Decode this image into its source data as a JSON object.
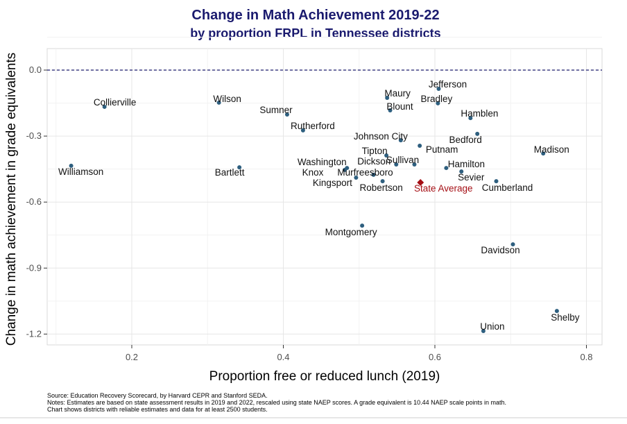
{
  "chart_data": {
    "type": "scatter",
    "title": "Change in Math Achievement 2019-22",
    "subtitle": "by proportion FRPL in Tennessee districts",
    "xlabel": "Proportion free or reduced lunch (2019)",
    "ylabel": "Change in math achievement in grade equivalents",
    "xlim": [
      0.09,
      0.81
    ],
    "ylim": [
      -1.25,
      0.1
    ],
    "x_ticks": [
      0.2,
      0.4,
      0.6,
      0.8
    ],
    "x_tick_labels": [
      "0.2",
      "0.4",
      "0.6",
      "0.8"
    ],
    "y_ticks": [
      0.0,
      -0.3,
      -0.6,
      -0.9,
      -1.2
    ],
    "y_tick_labels": [
      "0.0",
      "-0.3",
      "-0.6",
      "-0.9",
      "-1.2"
    ],
    "grid": true,
    "reference_line": {
      "y": 0.0,
      "style": "dashed",
      "color": "#1a1a6e"
    },
    "point_color": "#2e5f7f",
    "highlight_color": "#a50f15",
    "points": [
      {
        "label": "Collierville",
        "x": 0.164,
        "y": -0.167
      },
      {
        "label": "Williamson",
        "x": 0.12,
        "y": -0.435
      },
      {
        "label": "Wilson",
        "x": 0.315,
        "y": -0.148
      },
      {
        "label": "Bartlett",
        "x": 0.342,
        "y": -0.442
      },
      {
        "label": "Sumner",
        "x": 0.405,
        "y": -0.202
      },
      {
        "label": "Rutherford",
        "x": 0.426,
        "y": -0.274
      },
      {
        "label": "Maury",
        "x": 0.537,
        "y": -0.126
      },
      {
        "label": "Blount",
        "x": 0.541,
        "y": -0.183
      },
      {
        "label": "Jefferson",
        "x": 0.605,
        "y": -0.085
      },
      {
        "label": "Bradley",
        "x": 0.604,
        "y": -0.151
      },
      {
        "label": "Hamblen",
        "x": 0.647,
        "y": -0.218
      },
      {
        "label": "Johnson City",
        "x": 0.555,
        "y": -0.319
      },
      {
        "label": "Bedford",
        "x": 0.656,
        "y": -0.29
      },
      {
        "label": "Madison",
        "x": 0.743,
        "y": -0.379
      },
      {
        "label": "Tipton",
        "x": 0.536,
        "y": -0.388
      },
      {
        "label": "Putnam",
        "x": 0.58,
        "y": -0.344
      },
      {
        "label": "Dickson",
        "x": 0.549,
        "y": -0.429
      },
      {
        "label": "Sullivan",
        "x": 0.573,
        "y": -0.429
      },
      {
        "label": "Hamilton",
        "x": 0.615,
        "y": -0.445
      },
      {
        "label": "Washington",
        "x": 0.484,
        "y": -0.445
      },
      {
        "label": "Knox",
        "x": 0.481,
        "y": -0.454
      },
      {
        "label": "Murfreesboro",
        "x": 0.519,
        "y": -0.476
      },
      {
        "label": "Kingsport",
        "x": 0.496,
        "y": -0.489
      },
      {
        "label": "Robertson",
        "x": 0.531,
        "y": -0.505
      },
      {
        "label": "Sevier",
        "x": 0.635,
        "y": -0.461
      },
      {
        "label": "Cumberland",
        "x": 0.681,
        "y": -0.505
      },
      {
        "label": "State Average",
        "x": 0.581,
        "y": -0.511,
        "highlight": true
      },
      {
        "label": "Montgomery",
        "x": 0.504,
        "y": -0.707
      },
      {
        "label": "Davidson",
        "x": 0.703,
        "y": -0.792
      },
      {
        "label": "Shelby",
        "x": 0.761,
        "y": -1.095
      },
      {
        "label": "Union",
        "x": 0.664,
        "y": -1.186
      }
    ]
  },
  "notes": {
    "source": "Source: Education Recovery Scorecard, by Harvard CEPR and Stanford SEDA.",
    "notes": "Notes: Estimates are based on state assessment results in 2019 and 2022, rescaled using state NAEP scores. A grade equivalent is 10.44 NAEP scale points in math.",
    "coverage": "Chart shows districts with reliable estimates and data for at least 2500 students."
  }
}
